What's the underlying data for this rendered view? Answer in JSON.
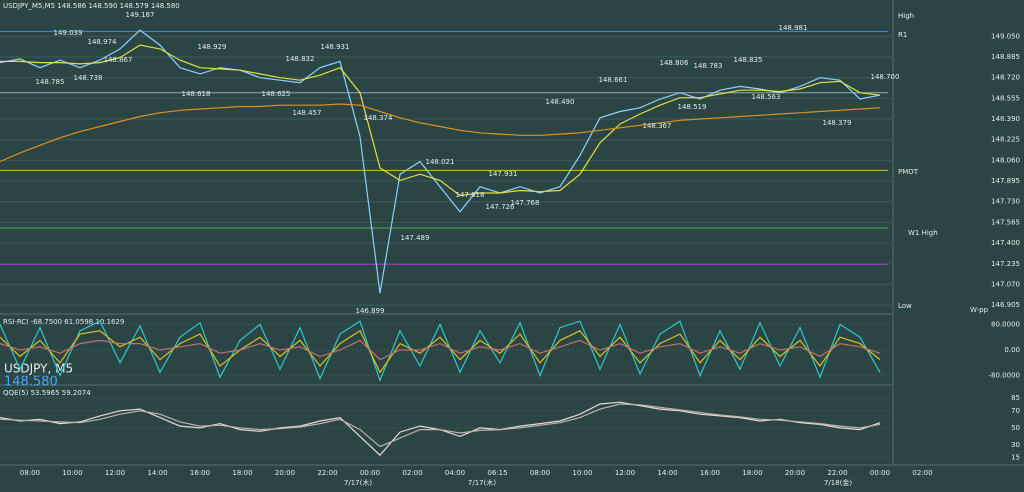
{
  "header": "USDJPY_M5,M5  148.586 148.590 148.579 148.580",
  "symbol": "USDJPY, M5",
  "price": "148.580",
  "time_labels": [
    "08:00",
    "10:00",
    "12:00",
    "14:00",
    "16:00",
    "18:00",
    "20:00",
    "22:00",
    "00:00",
    "02:00",
    "04:00",
    "06:15",
    "08:00",
    "10:00",
    "12:00",
    "14:00",
    "16:00",
    "18:00",
    "20:00",
    "22:00",
    "00:00",
    "02:00"
  ],
  "date_labels": [
    "7/17(木)",
    "7/17(木)",
    "7/18(金)"
  ],
  "price_labels": [
    "149.187",
    "149.039",
    "148.974",
    "148.867",
    "148.785",
    "148.738",
    "148.929",
    "148.618",
    "148.625",
    "148.832",
    "148.931",
    "148.457",
    "148.374",
    "148.021",
    "147.818",
    "147.931",
    "147.726",
    "147.768",
    "147.489",
    "146.899",
    "148.490",
    "148.661",
    "148.806",
    "148.783",
    "148.835",
    "148.981",
    "148.563",
    "148.519",
    "148.367",
    "148.700",
    "148.379"
  ],
  "level_labels": [
    "High",
    "R1",
    "PMOT",
    "W1 High",
    "Low",
    "W-pp"
  ],
  "chart_data": [
    {
      "type": "line",
      "ylim": [
        146.85,
        149.3
      ],
      "yticks": [
        {
          "value": 149.05,
          "label": "149.050"
        },
        {
          "value": 148.885,
          "label": "148.885"
        },
        {
          "value": 148.72,
          "label": "148.720"
        },
        {
          "value": 148.555,
          "label": "148.555"
        },
        {
          "value": 148.39,
          "label": "148.390"
        },
        {
          "value": 148.225,
          "label": "148.225"
        },
        {
          "value": 148.06,
          "label": "148.060"
        },
        {
          "value": 147.895,
          "label": "147.895"
        },
        {
          "value": 147.73,
          "label": "147.730"
        },
        {
          "value": 147.565,
          "label": "147.565"
        },
        {
          "value": 147.4,
          "label": "147.400"
        },
        {
          "value": 147.235,
          "label": "147.235"
        },
        {
          "value": 147.07,
          "label": "147.070"
        },
        {
          "value": 146.905,
          "label": "146.905"
        }
      ],
      "levels": [
        {
          "value": 149.09,
          "color": "#3a8fe0"
        },
        {
          "value": 148.6,
          "color": "#9aa8b8"
        },
        {
          "value": 147.98,
          "color": "#d8c020"
        },
        {
          "value": 147.52,
          "color": "#4ab04a"
        },
        {
          "value": 147.23,
          "color": "#a040c0"
        }
      ],
      "series": [
        {
          "color": "#8fd0ff",
          "values": [
            148.84,
            148.87,
            148.8,
            148.86,
            148.8,
            148.86,
            148.95,
            149.1,
            148.98,
            148.8,
            148.75,
            148.8,
            148.78,
            148.72,
            148.7,
            148.68,
            148.8,
            148.85,
            148.25,
            147.0,
            147.95,
            148.05,
            147.85,
            147.65,
            147.85,
            147.8,
            147.85,
            147.8,
            147.85,
            148.1,
            148.4,
            148.45,
            148.48,
            148.55,
            148.6,
            148.55,
            148.62,
            148.65,
            148.63,
            148.6,
            148.65,
            148.72,
            148.7,
            148.55,
            148.58
          ]
        },
        {
          "color": "#e0e040",
          "values": [
            148.85,
            148.85,
            148.84,
            148.84,
            148.83,
            148.84,
            148.88,
            148.98,
            148.95,
            148.86,
            148.8,
            148.79,
            148.78,
            148.75,
            148.72,
            148.7,
            148.74,
            148.8,
            148.6,
            148.0,
            147.9,
            147.95,
            147.9,
            147.78,
            147.8,
            147.8,
            147.82,
            147.81,
            147.82,
            147.95,
            148.2,
            148.35,
            148.43,
            148.5,
            148.56,
            148.56,
            148.59,
            148.62,
            148.62,
            148.61,
            148.63,
            148.68,
            148.69,
            148.6,
            148.58
          ]
        },
        {
          "color": "#e09020",
          "values": [
            148.05,
            148.12,
            148.18,
            148.24,
            148.29,
            148.33,
            148.37,
            148.41,
            148.44,
            148.46,
            148.47,
            148.48,
            148.49,
            148.49,
            148.5,
            148.5,
            148.5,
            148.51,
            148.5,
            148.45,
            148.4,
            148.36,
            148.33,
            148.3,
            148.28,
            148.27,
            148.26,
            148.26,
            148.27,
            148.28,
            148.3,
            148.32,
            148.34,
            148.36,
            148.38,
            148.39,
            148.4,
            148.41,
            148.42,
            148.43,
            148.44,
            148.45,
            148.46,
            148.47,
            148.48
          ]
        }
      ]
    },
    {
      "type": "line",
      "title": "RSI-RCI -68.7500 61.0598 10.1629",
      "ylim": [
        -100,
        100
      ],
      "yticks": [
        {
          "value": 80,
          "label": "80.0000"
        },
        {
          "value": 0,
          "label": "0.00"
        },
        {
          "value": -80,
          "label": "-80.0000"
        }
      ],
      "series": [
        {
          "color": "#30c8c8",
          "values": [
            80,
            -60,
            70,
            -80,
            60,
            90,
            -40,
            75,
            -70,
            40,
            85,
            -85,
            30,
            80,
            -60,
            70,
            -90,
            50,
            90,
            -95,
            60,
            -50,
            80,
            -70,
            60,
            -40,
            85,
            -80,
            70,
            90,
            -60,
            80,
            -75,
            50,
            90,
            -80,
            60,
            -60,
            85,
            -50,
            70,
            -85,
            80,
            40,
            -70
          ]
        },
        {
          "color": "#d8c020",
          "values": [
            40,
            -20,
            30,
            -40,
            50,
            60,
            10,
            40,
            -30,
            20,
            50,
            -50,
            0,
            40,
            -20,
            30,
            -50,
            20,
            60,
            -70,
            20,
            -10,
            40,
            -30,
            30,
            -10,
            50,
            -40,
            30,
            60,
            -20,
            40,
            -40,
            20,
            50,
            -40,
            30,
            -30,
            40,
            -20,
            30,
            -50,
            40,
            20,
            -30
          ]
        },
        {
          "color": "#c07070",
          "values": [
            20,
            0,
            10,
            -10,
            20,
            30,
            20,
            20,
            0,
            10,
            20,
            -10,
            0,
            20,
            0,
            10,
            -20,
            0,
            30,
            -30,
            0,
            0,
            20,
            -10,
            10,
            0,
            20,
            -10,
            10,
            30,
            0,
            20,
            -10,
            10,
            20,
            -10,
            10,
            -10,
            20,
            0,
            10,
            -20,
            20,
            10,
            -10
          ]
        }
      ]
    },
    {
      "type": "line",
      "title": "QQE(5) 53.5965 59.2074",
      "ylim": [
        10,
        92
      ],
      "yticks": [
        85,
        70,
        50,
        30,
        15
      ],
      "series": [
        {
          "color": "#e8d8d8",
          "values": [
            62,
            58,
            60,
            55,
            57,
            64,
            70,
            72,
            62,
            52,
            50,
            55,
            48,
            46,
            50,
            52,
            58,
            62,
            40,
            18,
            45,
            52,
            48,
            40,
            50,
            48,
            52,
            55,
            58,
            66,
            78,
            80,
            76,
            72,
            70,
            66,
            64,
            62,
            58,
            60,
            56,
            54,
            50,
            48,
            56
          ]
        },
        {
          "color": "#c0b0b0",
          "values": [
            60,
            59,
            58,
            57,
            56,
            60,
            66,
            70,
            66,
            57,
            52,
            53,
            50,
            48,
            49,
            51,
            55,
            60,
            48,
            28,
            38,
            48,
            48,
            44,
            47,
            48,
            50,
            53,
            56,
            62,
            72,
            78,
            77,
            74,
            71,
            68,
            65,
            63,
            60,
            59,
            57,
            55,
            52,
            50,
            54
          ]
        }
      ]
    }
  ]
}
